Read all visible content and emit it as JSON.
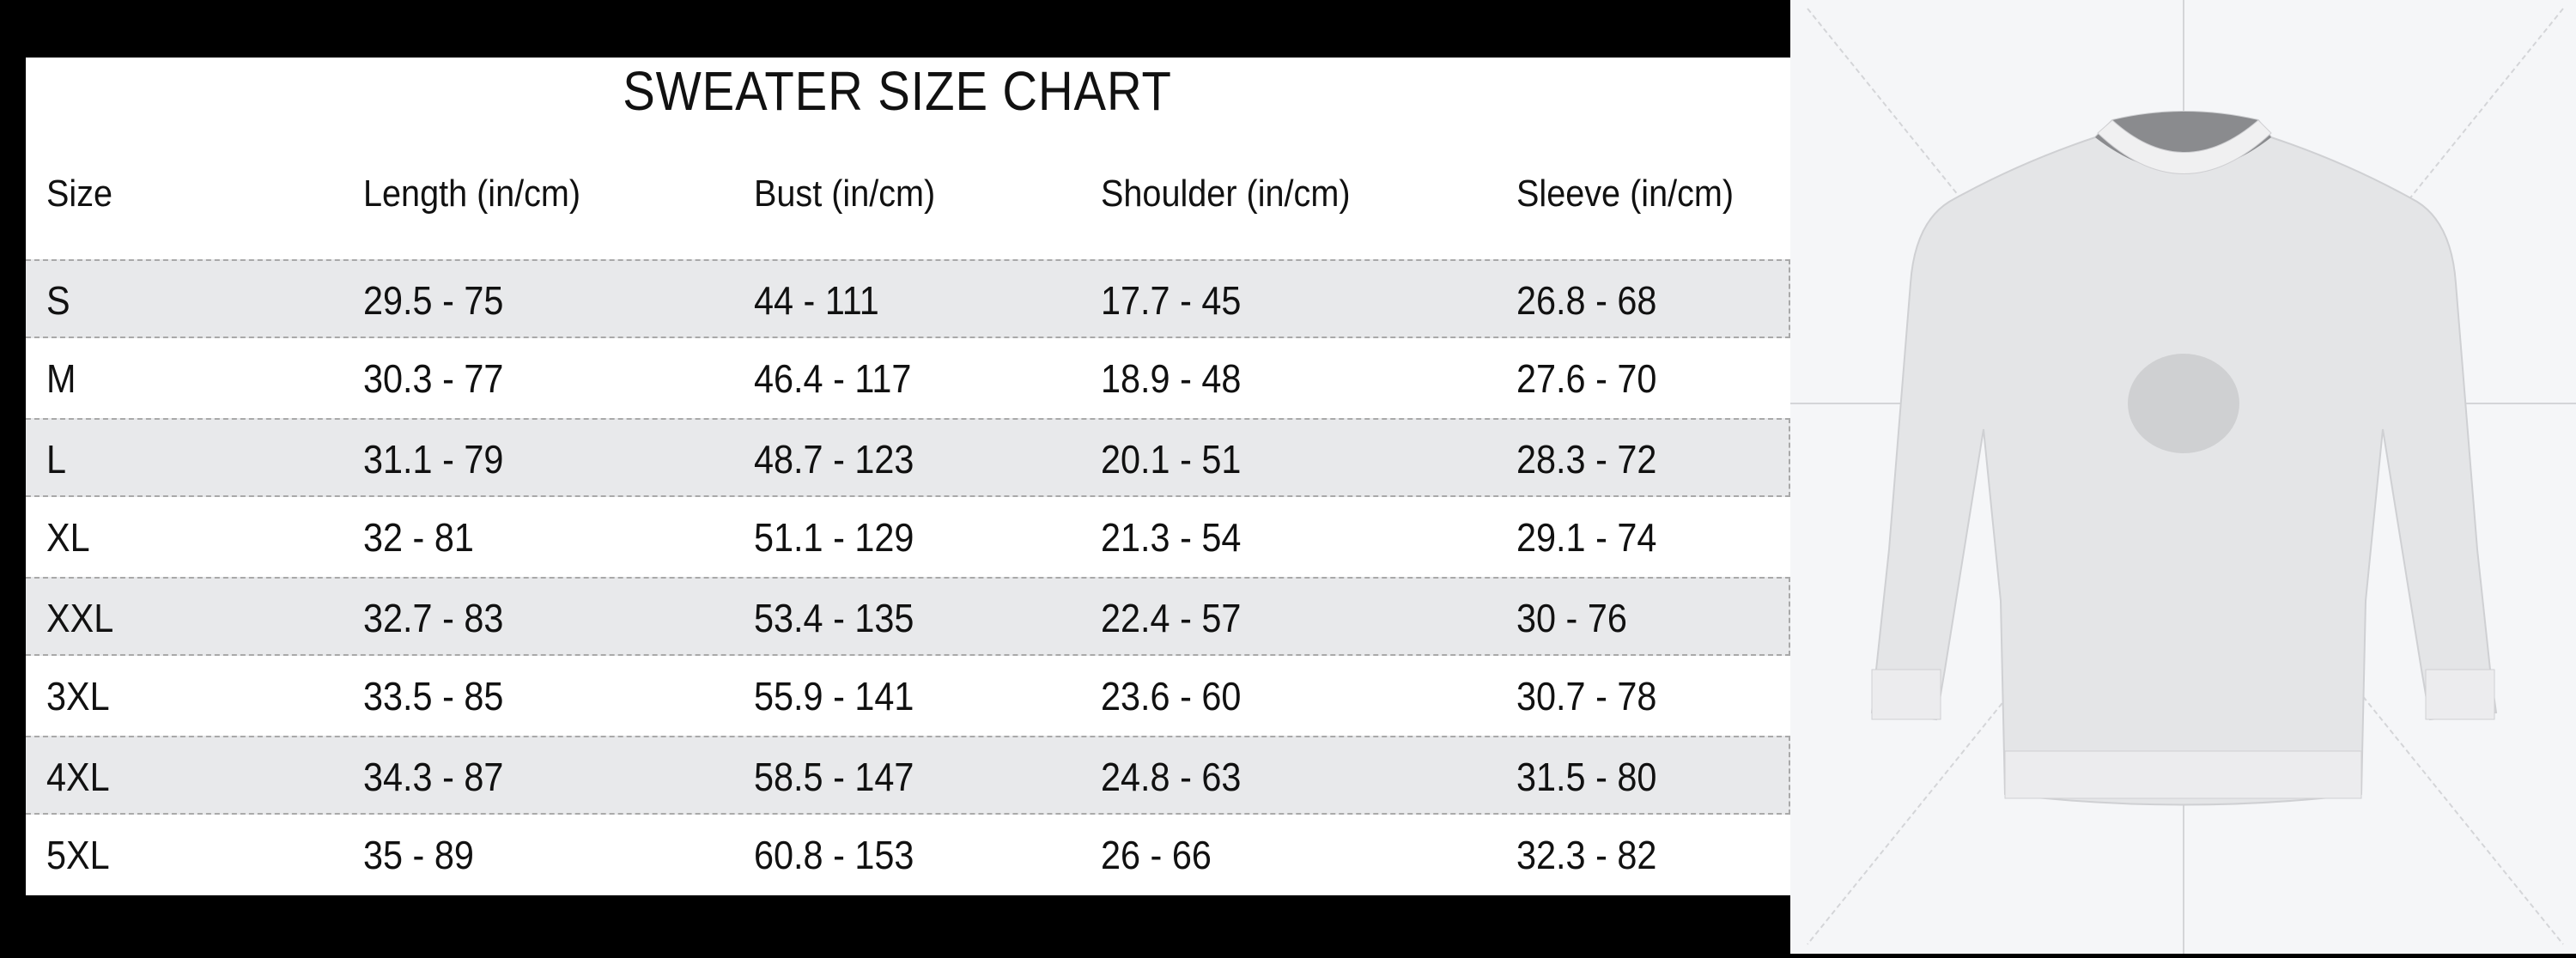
{
  "title": "SWEATER SIZE CHART",
  "columns": [
    "Size",
    "Length (in/cm)",
    "Bust (in/cm)",
    "Shoulder (in/cm)",
    "Sleeve (in/cm)"
  ],
  "rows": [
    [
      "S",
      "29.5 - 75",
      "44 - 111",
      "17.7 - 45",
      "26.8 - 68"
    ],
    [
      "M",
      "30.3 - 77",
      "46.4 - 117",
      "18.9 - 48",
      "27.6 - 70"
    ],
    [
      "L",
      "31.1 - 79",
      "48.7 - 123",
      "20.1 - 51",
      "28.3 - 72"
    ],
    [
      "XL",
      "32 - 81",
      "51.1 - 129",
      "21.3 - 54",
      "29.1 - 74"
    ],
    [
      "XXL",
      "32.7 - 83",
      "53.4 - 135",
      "22.4 - 57",
      "30 - 76"
    ],
    [
      "3XL",
      "33.5 - 85",
      "55.9 - 141",
      "23.6 - 60",
      "30.7 - 78"
    ],
    [
      "4XL",
      "34.3 - 87",
      "58.5 - 147",
      "24.8 - 63",
      "31.5 - 80"
    ],
    [
      "5XL",
      "35 - 89",
      "60.8 - 153",
      "26 - 66",
      "32.3 - 82"
    ]
  ],
  "colors": {
    "shaded_row": "#e8e9eb",
    "background": "#000000",
    "photo_bg": "#f5f6f8"
  }
}
